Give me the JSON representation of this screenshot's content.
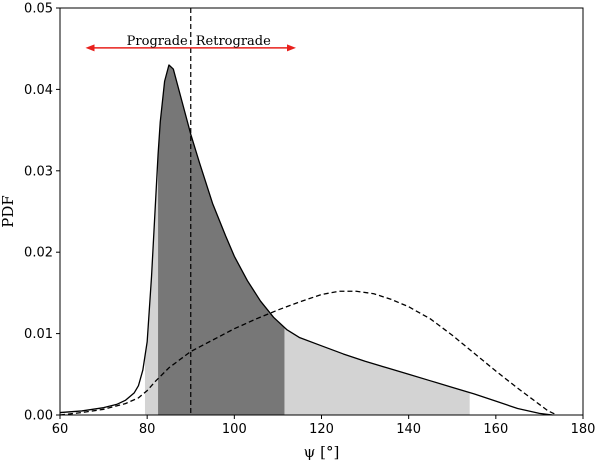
{
  "chart_data": {
    "type": "area",
    "title": "",
    "xlabel": "ψ [°]",
    "ylabel": "PDF",
    "xlim": [
      60,
      180
    ],
    "ylim": [
      0,
      0.05
    ],
    "xticks": [
      "60",
      "80",
      "100",
      "120",
      "140",
      "160",
      "180"
    ],
    "yticks": [
      "0.00",
      "0.01",
      "0.02",
      "0.03",
      "0.04",
      "0.05"
    ],
    "grid": false,
    "series": [
      {
        "style": "solid",
        "x": [
          60,
          65,
          70,
          73,
          75,
          77,
          78,
          79,
          80,
          81,
          81.5,
          82,
          82.5,
          83,
          84,
          85,
          86,
          88,
          90,
          92,
          95,
          98,
          100,
          103,
          106,
          109,
          112,
          115,
          120,
          125,
          130,
          135,
          140,
          145,
          150,
          155,
          160,
          165,
          170,
          173
        ],
        "y": [
          0.0003,
          0.0005,
          0.0009,
          0.0013,
          0.0018,
          0.0027,
          0.0036,
          0.0055,
          0.009,
          0.017,
          0.022,
          0.027,
          0.032,
          0.036,
          0.041,
          0.043,
          0.0425,
          0.0385,
          0.0345,
          0.031,
          0.026,
          0.022,
          0.0195,
          0.0165,
          0.014,
          0.012,
          0.0105,
          0.0095,
          0.0085,
          0.0075,
          0.0066,
          0.0058,
          0.005,
          0.0042,
          0.0034,
          0.0026,
          0.0017,
          0.0008,
          0.0002,
          0.0
        ]
      },
      {
        "style": "dashed",
        "x": [
          60,
          65,
          70,
          75,
          78,
          80,
          82,
          85,
          90,
          95,
          100,
          105,
          110,
          115,
          120,
          124,
          128,
          132,
          136,
          140,
          145,
          150,
          155,
          160,
          165,
          170,
          172,
          174
        ],
        "y": [
          0.0,
          0.0003,
          0.0007,
          0.0014,
          0.0021,
          0.003,
          0.0042,
          0.0058,
          0.0078,
          0.0092,
          0.0106,
          0.0118,
          0.0129,
          0.0139,
          0.0148,
          0.0152,
          0.0152,
          0.0149,
          0.0142,
          0.0133,
          0.0118,
          0.0098,
          0.0076,
          0.0054,
          0.0033,
          0.0013,
          0.0005,
          0.0
        ]
      }
    ],
    "shaded_regions": [
      {
        "x_range": [
          79.5,
          154
        ],
        "color": "#d3d3d3"
      },
      {
        "x_range": [
          82.5,
          111.5
        ],
        "color": "#777777"
      }
    ],
    "vline": {
      "x": 90,
      "style": "dashed"
    },
    "annotations": {
      "prograde_label": "Prograde",
      "retrograde_label": "Retrograde",
      "prograde_arrow_x": [
        90,
        67
      ],
      "retrograde_arrow_x": [
        90,
        113
      ],
      "arrow_y": 0.0451,
      "arrow_color": "#e8201c"
    }
  }
}
